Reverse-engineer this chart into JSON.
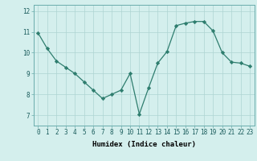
{
  "x": [
    0,
    1,
    2,
    3,
    4,
    5,
    6,
    7,
    8,
    9,
    10,
    11,
    12,
    13,
    14,
    15,
    16,
    17,
    18,
    19,
    20,
    21,
    22,
    23
  ],
  "y": [
    10.95,
    10.2,
    9.6,
    9.3,
    9.0,
    8.6,
    8.2,
    7.8,
    8.0,
    8.2,
    9.0,
    7.05,
    8.3,
    9.5,
    10.05,
    11.3,
    11.42,
    11.5,
    11.5,
    11.05,
    10.0,
    9.55,
    9.5,
    9.35
  ],
  "line_color": "#2e7d6e",
  "marker_color": "#2e7d6e",
  "bg_color": "#d4efed",
  "grid_color": "#aed4d2",
  "xlabel": "Humidex (Indice chaleur)",
  "ylim": [
    6.5,
    12.3
  ],
  "xlim": [
    -0.5,
    23.5
  ],
  "yticks": [
    7,
    8,
    9,
    10,
    11,
    12
  ],
  "xtick_labels": [
    "0",
    "1",
    "2",
    "3",
    "4",
    "5",
    "6",
    "7",
    "8",
    "9",
    "10",
    "11",
    "12",
    "13",
    "14",
    "15",
    "16",
    "17",
    "18",
    "19",
    "20",
    "21",
    "22",
    "23"
  ],
  "label_fontsize": 6.5,
  "tick_fontsize": 5.5
}
